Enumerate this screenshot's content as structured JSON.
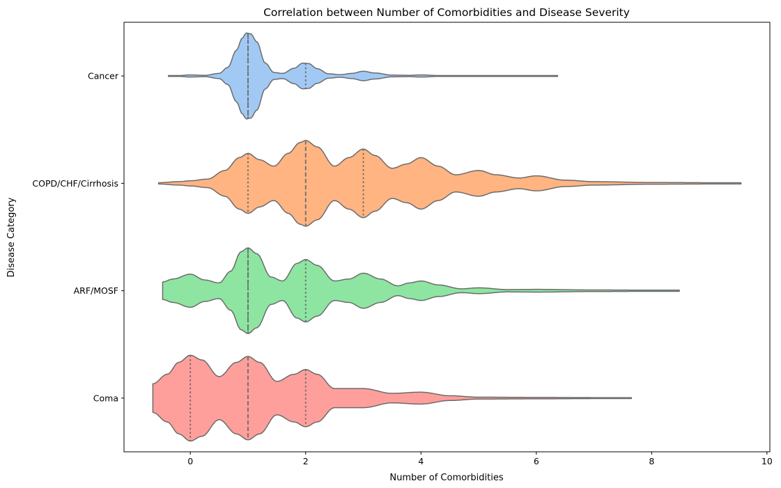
{
  "chart_data": {
    "type": "violin",
    "orientation": "horizontal",
    "title": "Correlation between Number of Comorbidities and Disease Severity",
    "xlabel": "Number of Comorbidities",
    "ylabel": "Disease Category",
    "xlim": [
      -1.15,
      10.05
    ],
    "xticks": [
      0,
      2,
      4,
      6,
      8,
      10
    ],
    "categories": [
      "Cancer",
      "COPD/CHF/Cirrhosis",
      "ARF/MOSF",
      "Coma"
    ],
    "inner": "quartile",
    "grid": false,
    "legend": "none",
    "outline_color": "#6b6b6b",
    "series": [
      {
        "category": "Cancer",
        "color": "#a1c9f4",
        "range": [
          -0.38,
          6.37
        ],
        "quartiles": [
          1,
          1,
          2
        ],
        "density": [
          [
            -0.38,
            0.002
          ],
          [
            -0.2,
            0.01
          ],
          [
            0,
            0.025
          ],
          [
            0.25,
            0.015
          ],
          [
            0.5,
            0.06
          ],
          [
            0.65,
            0.2
          ],
          [
            0.8,
            0.6
          ],
          [
            0.9,
            0.88
          ],
          [
            0.97,
            1.0
          ],
          [
            1.05,
            0.98
          ],
          [
            1.15,
            0.8
          ],
          [
            1.3,
            0.3
          ],
          [
            1.45,
            0.08
          ],
          [
            1.6,
            0.06
          ],
          [
            1.8,
            0.18
          ],
          [
            1.95,
            0.3
          ],
          [
            2.05,
            0.29
          ],
          [
            2.2,
            0.17
          ],
          [
            2.4,
            0.05
          ],
          [
            2.6,
            0.03
          ],
          [
            2.8,
            0.06
          ],
          [
            3,
            0.11
          ],
          [
            3.2,
            0.07
          ],
          [
            3.5,
            0.02
          ],
          [
            3.8,
            0.015
          ],
          [
            4,
            0.025
          ],
          [
            4.3,
            0.01
          ],
          [
            4.7,
            0.004
          ],
          [
            5,
            0.006
          ],
          [
            5.5,
            0.003
          ],
          [
            6,
            0.002
          ],
          [
            6.37,
            0.002
          ]
        ]
      },
      {
        "category": "COPD/CHF/Cirrhosis",
        "color": "#ffb482",
        "range": [
          -0.55,
          9.55
        ],
        "quartiles": [
          1,
          2,
          3
        ],
        "density": [
          [
            -0.55,
            0.003
          ],
          [
            -0.2,
            0.008
          ],
          [
            0,
            0.012
          ],
          [
            0.3,
            0.02
          ],
          [
            0.6,
            0.06
          ],
          [
            0.85,
            0.12
          ],
          [
            1,
            0.14
          ],
          [
            1.2,
            0.11
          ],
          [
            1.45,
            0.08
          ],
          [
            1.7,
            0.14
          ],
          [
            1.9,
            0.19
          ],
          [
            2,
            0.2
          ],
          [
            2.2,
            0.17
          ],
          [
            2.5,
            0.08
          ],
          [
            2.75,
            0.12
          ],
          [
            3,
            0.16
          ],
          [
            3.2,
            0.13
          ],
          [
            3.5,
            0.07
          ],
          [
            3.75,
            0.09
          ],
          [
            4,
            0.12
          ],
          [
            4.3,
            0.08
          ],
          [
            4.6,
            0.04
          ],
          [
            5,
            0.06
          ],
          [
            5.3,
            0.04
          ],
          [
            5.7,
            0.025
          ],
          [
            6,
            0.035
          ],
          [
            6.5,
            0.015
          ],
          [
            7,
            0.008
          ],
          [
            8,
            0.004
          ],
          [
            9,
            0.003
          ],
          [
            9.55,
            0.003
          ]
        ]
      },
      {
        "category": "ARF/MOSF",
        "color": "#8de5a1",
        "range": [
          -0.48,
          8.48
        ],
        "quartiles": [
          1,
          1,
          2
        ],
        "density": [
          [
            -0.48,
            0.045
          ],
          [
            -0.3,
            0.06
          ],
          [
            0,
            0.085
          ],
          [
            0.25,
            0.055
          ],
          [
            0.5,
            0.04
          ],
          [
            0.7,
            0.1
          ],
          [
            0.88,
            0.2
          ],
          [
            1,
            0.22
          ],
          [
            1.15,
            0.19
          ],
          [
            1.4,
            0.07
          ],
          [
            1.6,
            0.05
          ],
          [
            1.85,
            0.14
          ],
          [
            2,
            0.16
          ],
          [
            2.2,
            0.13
          ],
          [
            2.5,
            0.05
          ],
          [
            2.75,
            0.06
          ],
          [
            3,
            0.09
          ],
          [
            3.3,
            0.06
          ],
          [
            3.6,
            0.025
          ],
          [
            3.8,
            0.04
          ],
          [
            4,
            0.05
          ],
          [
            4.3,
            0.03
          ],
          [
            4.7,
            0.01
          ],
          [
            5,
            0.015
          ],
          [
            5.5,
            0.006
          ],
          [
            6,
            0.007
          ],
          [
            7,
            0.004
          ],
          [
            8,
            0.003
          ],
          [
            8.48,
            0.003
          ]
        ]
      },
      {
        "category": "Coma",
        "color": "#ff9f9b",
        "range": [
          -0.65,
          7.65
        ],
        "quartiles": [
          0,
          1,
          2
        ],
        "density": [
          [
            -0.65,
            0.06
          ],
          [
            -0.4,
            0.1
          ],
          [
            -0.2,
            0.15
          ],
          [
            0,
            0.18
          ],
          [
            0.2,
            0.16
          ],
          [
            0.5,
            0.09
          ],
          [
            0.8,
            0.15
          ],
          [
            1,
            0.175
          ],
          [
            1.2,
            0.15
          ],
          [
            1.5,
            0.07
          ],
          [
            1.8,
            0.1
          ],
          [
            2,
            0.12
          ],
          [
            2.2,
            0.1
          ],
          [
            2.5,
            0.04
          ],
          [
            3,
            0.04
          ],
          [
            3.5,
            0.02
          ],
          [
            4,
            0.025
          ],
          [
            4.5,
            0.01
          ],
          [
            5,
            0.004
          ],
          [
            6,
            0.003
          ],
          [
            7,
            0.002
          ],
          [
            7.65,
            0.002
          ]
        ]
      }
    ]
  }
}
